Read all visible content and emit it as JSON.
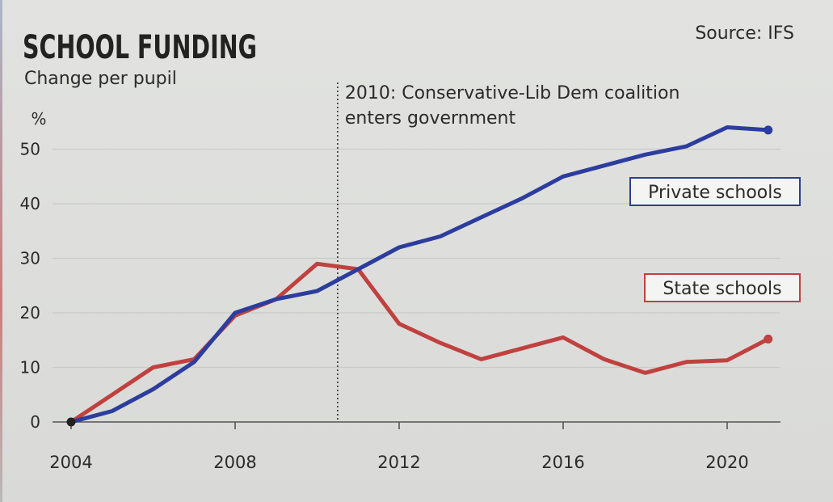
{
  "chart_data": {
    "type": "line",
    "title": "SCHOOL FUNDING",
    "subtitle": "Change per pupil",
    "source": "Source: IFS",
    "ylabel": "%",
    "ylim": [
      0,
      55
    ],
    "yticks": [
      0,
      10,
      20,
      30,
      40,
      50
    ],
    "xlim": [
      2004,
      2021.3
    ],
    "xticks": [
      2004,
      2008,
      2012,
      2016,
      2020
    ],
    "grid": "horizontal",
    "annotation": {
      "x": 2010.5,
      "lines": [
        "2010: Conservative-Lib Dem coalition",
        "enters government"
      ]
    },
    "series": [
      {
        "name": "Private schools",
        "color": "#2c3d9e",
        "x": [
          2004,
          2005,
          2006,
          2007,
          2008,
          2009,
          2010,
          2011,
          2012,
          2013,
          2014,
          2015,
          2016,
          2017,
          2018,
          2019,
          2020,
          2021
        ],
        "values": [
          0,
          2,
          6,
          11,
          20,
          22.5,
          24,
          28,
          32,
          34,
          37.5,
          41,
          45,
          47,
          49,
          50.5,
          54,
          53.5
        ]
      },
      {
        "name": "State schools",
        "color": "#c0413f",
        "x": [
          2004,
          2005,
          2006,
          2007,
          2008,
          2009,
          2010,
          2011,
          2012,
          2013,
          2014,
          2015,
          2016,
          2017,
          2018,
          2019,
          2020,
          2021
        ],
        "values": [
          0,
          5,
          10,
          11.5,
          19.5,
          22.5,
          29,
          28,
          18,
          14.5,
          11.5,
          13.5,
          15.5,
          11.5,
          9,
          11,
          11.3,
          15.2
        ]
      }
    ]
  }
}
